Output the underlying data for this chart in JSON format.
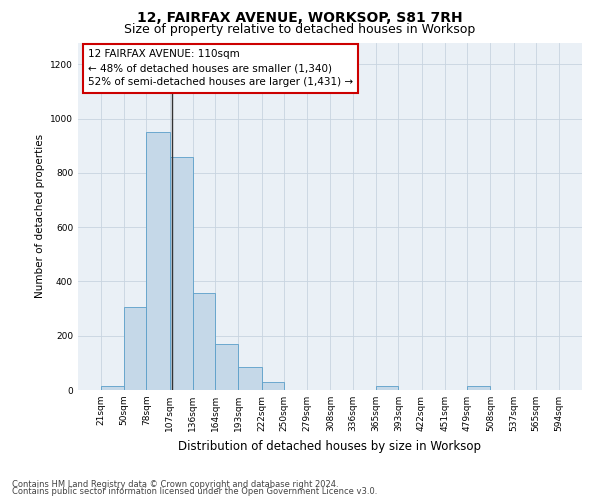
{
  "title": "12, FAIRFAX AVENUE, WORKSOP, S81 7RH",
  "subtitle": "Size of property relative to detached houses in Worksop",
  "xlabel": "Distribution of detached houses by size in Worksop",
  "ylabel": "Number of detached properties",
  "annotation_title": "12 FAIRFAX AVENUE: 110sqm",
  "annotation_line1": "← 48% of detached houses are smaller (1,340)",
  "annotation_line2": "52% of semi-detached houses are larger (1,431) →",
  "footer_line1": "Contains HM Land Registry data © Crown copyright and database right 2024.",
  "footer_line2": "Contains public sector information licensed under the Open Government Licence v3.0.",
  "property_size": 110,
  "bin_edges": [
    21,
    50,
    78,
    107,
    136,
    164,
    193,
    222,
    250,
    279,
    308,
    336,
    365,
    393,
    422,
    451,
    479,
    508,
    537,
    565,
    594
  ],
  "bar_values": [
    14,
    305,
    950,
    860,
    357,
    170,
    86,
    28,
    0,
    0,
    0,
    0,
    14,
    0,
    0,
    0,
    14,
    0,
    0,
    0
  ],
  "bar_color": "#c5d8e8",
  "bar_edge_color": "#5a9ec9",
  "vline_color": "#333333",
  "annotation_box_color": "#cc0000",
  "ax_bg_color": "#eaf0f6",
  "background_color": "#ffffff",
  "grid_color": "#c8d4e0",
  "ylim": [
    0,
    1280
  ],
  "yticks": [
    0,
    200,
    400,
    600,
    800,
    1000,
    1200
  ],
  "title_fontsize": 10,
  "subtitle_fontsize": 9,
  "xlabel_fontsize": 8.5,
  "ylabel_fontsize": 7.5,
  "tick_fontsize": 6.5,
  "annotation_fontsize": 7.5,
  "footer_fontsize": 6.0
}
